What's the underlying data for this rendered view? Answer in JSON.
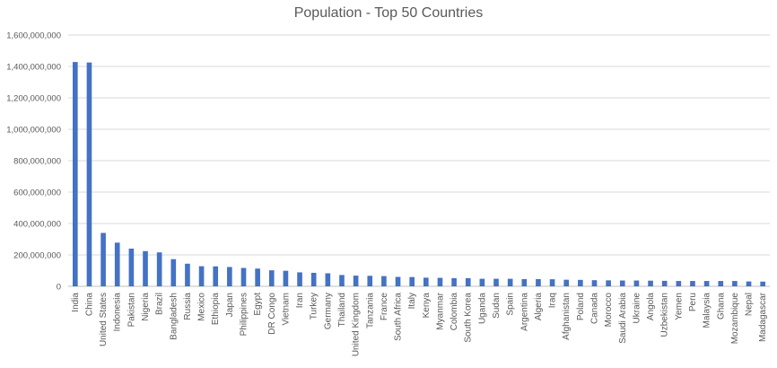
{
  "chart_data": {
    "type": "bar",
    "title": "Population - Top 50 Countries",
    "xlabel": "",
    "ylabel": "",
    "ylim": [
      0,
      1600000000
    ],
    "yticks": [
      0,
      200000000,
      400000000,
      600000000,
      800000000,
      1000000000,
      1200000000,
      1400000000,
      1600000000
    ],
    "ytick_labels": [
      "0",
      "200,000,000",
      "400,000,000",
      "600,000,000",
      "800,000,000",
      "1,000,000,000",
      "1,200,000,000",
      "1,400,000,000",
      "1,600,000,000"
    ],
    "grid": true,
    "legend": "none",
    "bar_color": "#4472C4",
    "categories": [
      "India",
      "China",
      "United States",
      "Indonesia",
      "Pakistan",
      "Nigeria",
      "Brazil",
      "Bangladesh",
      "Russia",
      "Mexico",
      "Ethiopia",
      "Japan",
      "Philippines",
      "Egypt",
      "DR Congo",
      "Vietnam",
      "Iran",
      "Turkey",
      "Germany",
      "Thailand",
      "United Kingdom",
      "Tanzania",
      "France",
      "South Africa",
      "Italy",
      "Kenya",
      "Myanmar",
      "Colombia",
      "South Korea",
      "Uganda",
      "Sudan",
      "Spain",
      "Argentina",
      "Algeria",
      "Iraq",
      "Afghanistan",
      "Poland",
      "Canada",
      "Morocco",
      "Saudi Arabia",
      "Ukraine",
      "Angola",
      "Uzbekistan",
      "Yemen",
      "Peru",
      "Malaysia",
      "Ghana",
      "Mozambique",
      "Nepal",
      "Madagascar"
    ],
    "values": [
      1428000000,
      1425000000,
      340000000,
      278000000,
      240000000,
      224000000,
      216000000,
      173000000,
      144000000,
      128000000,
      127000000,
      123000000,
      117000000,
      113000000,
      102000000,
      99000000,
      89000000,
      86000000,
      83000000,
      72000000,
      68000000,
      67000000,
      65000000,
      60000000,
      59000000,
      55000000,
      54000000,
      52000000,
      52000000,
      48000000,
      48000000,
      48000000,
      46000000,
      46000000,
      45000000,
      42000000,
      41000000,
      39000000,
      38000000,
      37000000,
      37000000,
      36000000,
      35000000,
      34000000,
      34000000,
      34000000,
      34000000,
      34000000,
      31000000,
      30000000
    ]
  }
}
